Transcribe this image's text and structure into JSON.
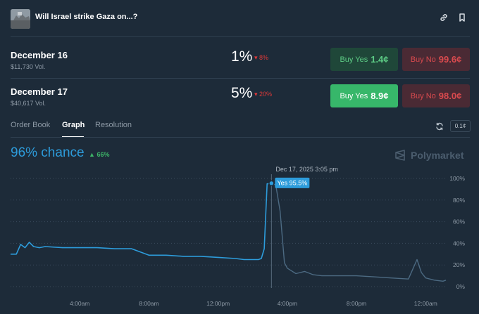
{
  "header": {
    "title": "Will Israel strike Gaza on...?",
    "link_icon": "link-icon",
    "bookmark_icon": "bookmark-icon"
  },
  "markets": [
    {
      "date": "December 16",
      "volume": "$11,730 Vol.",
      "chance": "1%",
      "change": "8%",
      "buy_yes_label": "Buy Yes",
      "buy_yes_price": "1.4¢",
      "buy_no_label": "Buy No",
      "buy_no_price": "99.6¢"
    },
    {
      "date": "December 17",
      "volume": "$40,617 Vol.",
      "chance": "5%",
      "change": "20%",
      "buy_yes_label": "Buy Yes",
      "buy_yes_price": "8.9¢",
      "buy_no_label": "Buy No",
      "buy_no_price": "98.0¢"
    }
  ],
  "tabs": [
    "Order Book",
    "Graph",
    "Resolution"
  ],
  "active_tab": "Graph",
  "step_value": "0.1¢",
  "graph": {
    "chance_text": "96% chance",
    "chance_change": "66%",
    "brand": "Polymarket",
    "hover_time": "Dec 17, 2025 3:05 pm",
    "hover_label": "Yes 95.5%"
  },
  "colors": {
    "background": "#1d2b39",
    "line_primary": "#2d9cdb",
    "line_faded": "#4c6a82",
    "positive": "#3db468",
    "negative": "#e23939"
  },
  "chart_data": {
    "type": "line",
    "series": [
      {
        "name": "Yes",
        "x": [
          "00:00",
          "00:20",
          "00:35",
          "00:50",
          "01:05",
          "01:20",
          "01:40",
          "02:00",
          "03:00",
          "04:00",
          "05:00",
          "06:00",
          "07:00",
          "08:00",
          "09:00",
          "10:00",
          "11:00",
          "12:00",
          "13:00",
          "13:30",
          "14:00",
          "14:20",
          "14:30",
          "14:40",
          "14:50",
          "15:05",
          "15:20",
          "15:35",
          "15:50",
          "16:00",
          "16:30",
          "17:00",
          "17:30",
          "18:00",
          "19:00",
          "20:00",
          "21:00",
          "22:00",
          "23:00",
          "23:30",
          "23:45",
          "00:00",
          "00:30",
          "01:00",
          "01:10"
        ],
        "values": [
          30,
          30,
          39,
          36,
          41,
          37,
          36,
          37,
          36,
          36,
          36,
          35,
          35,
          29,
          29,
          28,
          28,
          27,
          26,
          25,
          25,
          25,
          26,
          35,
          95,
          95.5,
          94,
          70,
          22,
          17,
          12,
          14,
          11,
          10,
          10,
          10,
          9,
          8,
          7,
          25,
          13,
          8,
          6,
          5,
          6
        ]
      }
    ],
    "x_ticks": [
      "4:00am",
      "8:00am",
      "12:00pm",
      "4:00pm",
      "8:00pm",
      "12:00am"
    ],
    "y_ticks": [
      "0%",
      "20%",
      "40%",
      "60%",
      "80%",
      "100%"
    ],
    "ylim": [
      0,
      100
    ],
    "grid": true,
    "legend": "none",
    "annotations": [
      "Dec 17, 2025 3:05 pm",
      "Yes 95.5%"
    ]
  }
}
